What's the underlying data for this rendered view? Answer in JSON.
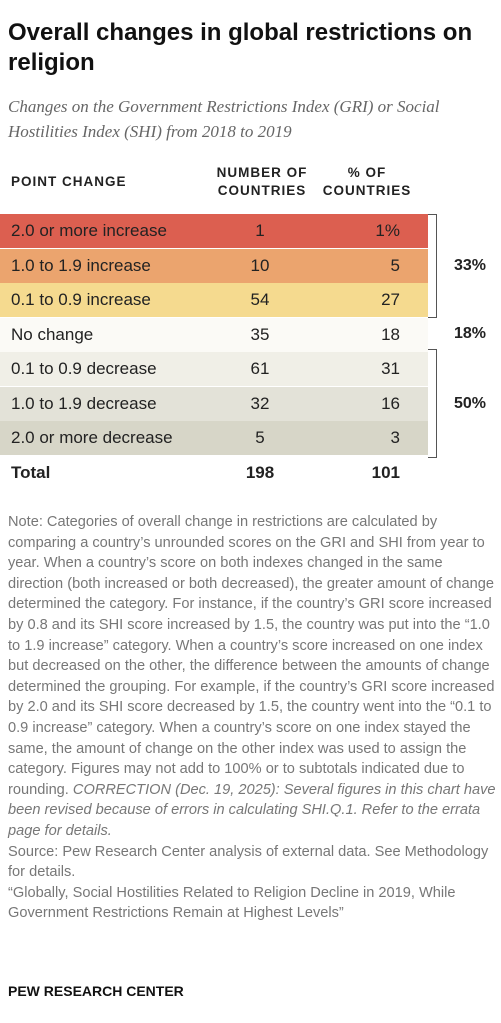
{
  "title": "Overall changes in global restrictions on religion",
  "subtitle": "Changes on the Government Restrictions Index (GRI) or Social Hostilities Index (SHI) from 2018 to 2019",
  "table": {
    "columns": [
      "POINT CHANGE",
      "NUMBER OF COUNTRIES",
      "% OF COUNTRIES"
    ],
    "rows": [
      [
        "2.0 or more increase",
        "1",
        "1%"
      ],
      [
        "1.0 to 1.9 increase",
        "10",
        "5"
      ],
      [
        "0.1 to 0.9 increase",
        "54",
        "27"
      ],
      [
        "No change",
        "35",
        "18"
      ],
      [
        "0.1 to 0.9 decrease",
        "61",
        "31"
      ],
      [
        "1.0 to 1.9 decrease",
        "32",
        "16"
      ],
      [
        "2.0 or more decrease",
        "5",
        "3"
      ]
    ],
    "total": [
      "Total",
      "198",
      "101"
    ],
    "groups": [
      "33%",
      "18%",
      "50%"
    ]
  },
  "note": "Note: Categories of overall change in restrictions are calculated by comparing a country’s unrounded scores on the GRI and SHI from year to year. When a country’s score on both indexes changed in the same direction (both increased or both decreased), the greater amount of change determined the category. For instance, if the country’s GRI score increased by 0.8 and its SHI score increased by 1.5, the country was put into the “1.0 to 1.9 increase” category. When a country’s score increased on one index but decreased on the other, the difference between the amounts of change determined the grouping. For example, if the country’s GRI score increased by 2.0 and its SHI score decreased by 1.5, the country went into the “0.1 to 0.9 increase” category. When a country’s score on one index stayed the same, the amount of change on the other index was used to assign the category. Figures may not add to 100% or to subtotals indicated due to rounding.",
  "correction": "CORRECTION (Dec. 19, 2025): Several figures in this chart have been revised because of errors in calculating SHI.Q.1. Refer to the errata page for details.",
  "source": "Source: Pew Research Center analysis of external data. See Methodology for details.",
  "report": "“Globally, Social Hostilities Related to Religion Decline in 2019, While Government Restrictions Remain at Highest Levels”",
  "footer": "PEW RESEARCH CENTER"
}
